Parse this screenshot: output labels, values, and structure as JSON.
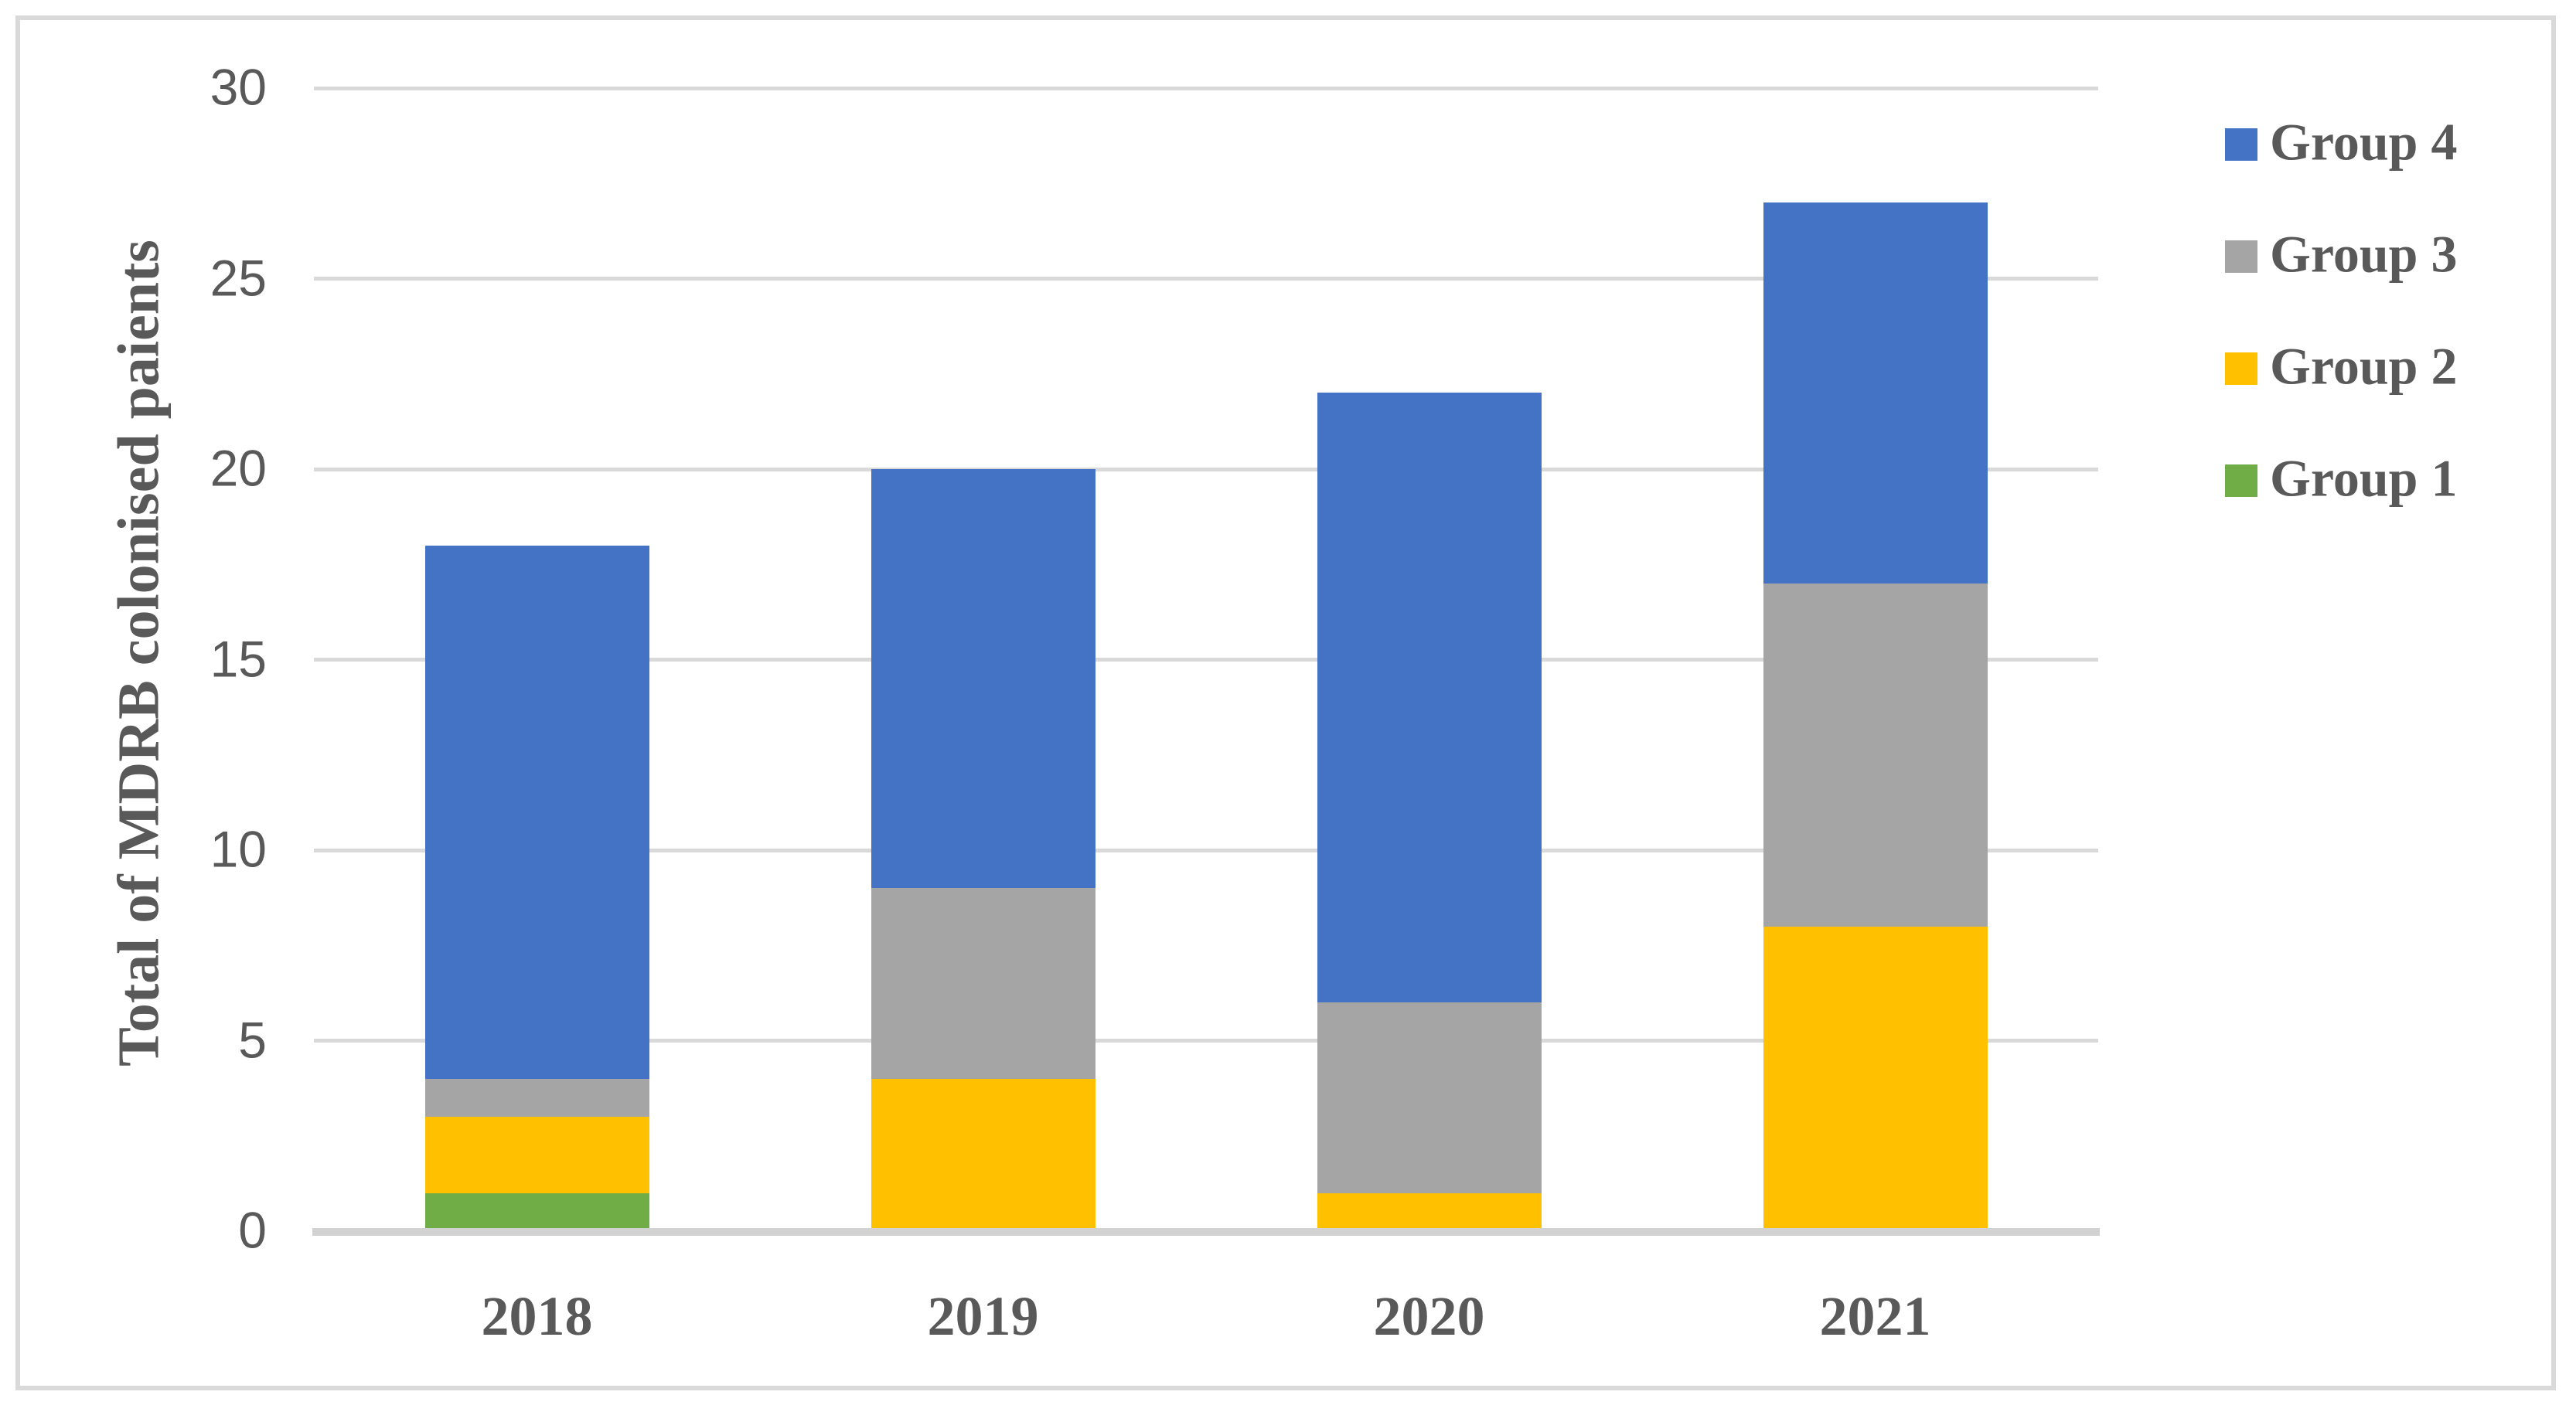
{
  "chart_data": {
    "type": "bar",
    "stacked": true,
    "title": "",
    "xlabel": "",
    "ylabel": "Total of MDRB colonised paients",
    "categories": [
      "2018",
      "2019",
      "2020",
      "2021"
    ],
    "series": [
      {
        "name": "Group 1",
        "color": "#70AD47",
        "values": [
          1,
          0,
          0,
          0
        ]
      },
      {
        "name": "Group 2",
        "color": "#FFC000",
        "values": [
          2,
          4,
          1,
          8
        ]
      },
      {
        "name": "Group 3",
        "color": "#A5A5A5",
        "values": [
          1,
          5,
          5,
          9
        ]
      },
      {
        "name": "Group 4",
        "color": "#4472C4",
        "values": [
          14,
          11,
          16,
          10
        ]
      }
    ],
    "stack_totals": [
      18,
      20,
      22,
      27
    ],
    "ylim": [
      0,
      30
    ],
    "yticks": [
      0,
      5,
      10,
      15,
      20,
      25,
      30
    ],
    "grid": "horizontal-only",
    "legend_position": "right",
    "legend": [
      {
        "label": "Group 4",
        "color": "#4472C4"
      },
      {
        "label": "Group 3",
        "color": "#A5A5A5"
      },
      {
        "label": "Group 2",
        "color": "#FFC000"
      },
      {
        "label": "Group 1",
        "color": "#70AD47"
      }
    ]
  },
  "styles": {
    "background": "#FFFFFF",
    "border_color": "#D9D9D9",
    "gridline_color": "#D9D9D9",
    "axis_line_color": "#D2D2D2",
    "text_color": "#595959"
  }
}
